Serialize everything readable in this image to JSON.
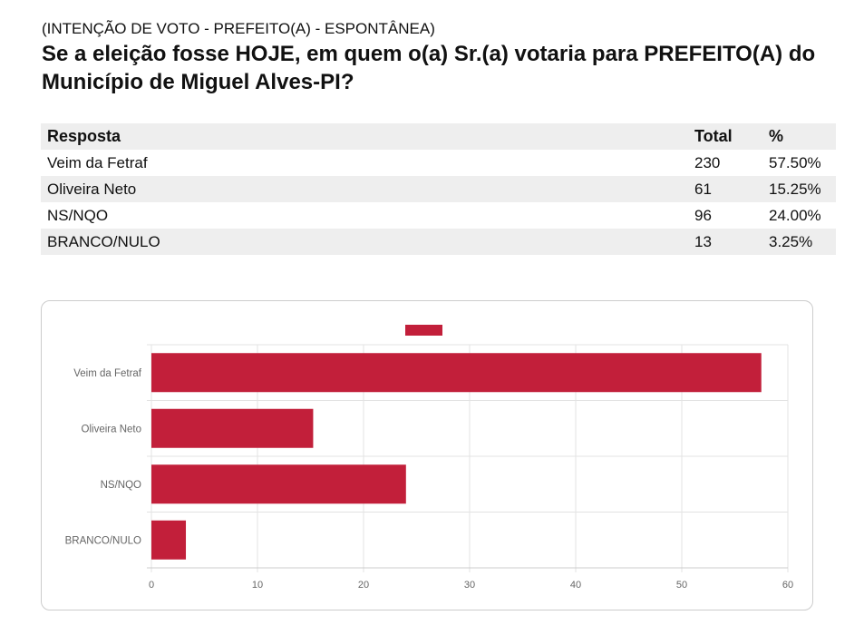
{
  "header": {
    "subtitle": "(INTENÇÃO DE VOTO - PREFEITO(A) - ESPONTÂNEA)",
    "title": "Se a eleição fosse HOJE, em quem o(a) Sr.(a) votaria para PREFEITO(A) do Município de Miguel Alves-PI?"
  },
  "table": {
    "headers": [
      "Resposta",
      "Total",
      "%"
    ],
    "rows": [
      [
        "Veim da Fetraf",
        "230",
        "57.50%"
      ],
      [
        "Oliveira Neto",
        "61",
        "15.25%"
      ],
      [
        "NS/NQO",
        "96",
        "24.00%"
      ],
      [
        "BRANCO/NULO",
        "13",
        "3.25%"
      ]
    ]
  },
  "chart_data": {
    "type": "bar",
    "orientation": "horizontal",
    "categories": [
      "Veim da Fetraf",
      "Oliveira Neto",
      "NS/NQO",
      "BRANCO/NULO"
    ],
    "values": [
      57.5,
      15.25,
      24.0,
      3.25
    ],
    "xlim": [
      0,
      60
    ],
    "xticks": [
      0,
      10,
      20,
      30,
      40,
      50,
      60
    ],
    "grid": true,
    "legend": "top",
    "color": "#c21f3a"
  }
}
